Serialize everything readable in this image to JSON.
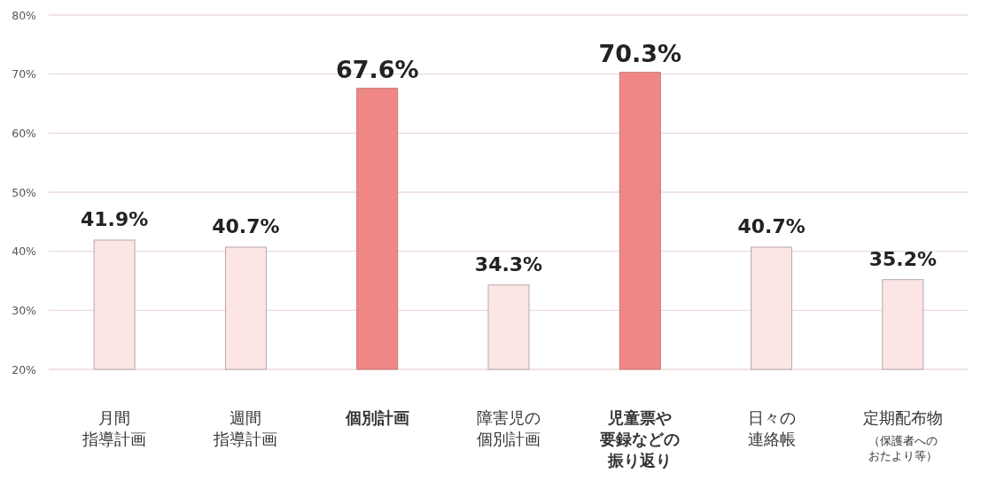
{
  "chart_data": {
    "type": "bar",
    "categories": [
      "月間指導計画",
      "週間指導計画",
      "個別計画",
      "障害児の個別計画",
      "児童票や要録などの振り返り",
      "日々の連絡帳",
      "定期配布物（保護者へのおたより等）"
    ],
    "values": [
      41.9,
      40.7,
      67.6,
      34.3,
      70.3,
      40.7,
      35.2
    ],
    "value_labels": [
      "41.9%",
      "40.7%",
      "67.6%",
      "34.3%",
      "70.3%",
      "40.7%",
      "35.2%"
    ],
    "colors": [
      "#fbe5e5",
      "#fbe5e5",
      "#ef8787",
      "#fbe5e5",
      "#ef8787",
      "#fbe5e5",
      "#fbe5e5"
    ],
    "ylim": [
      20,
      80
    ],
    "yticks": [
      {
        "value": 20,
        "label": "20%"
      },
      {
        "value": 30,
        "label": "30%"
      },
      {
        "value": 40,
        "label": "40%"
      },
      {
        "value": 50,
        "label": "50%"
      },
      {
        "value": 60,
        "label": "60%"
      },
      {
        "value": 70,
        "label": "70%"
      },
      {
        "value": 80,
        "label": "80%"
      }
    ],
    "grid": "y"
  }
}
